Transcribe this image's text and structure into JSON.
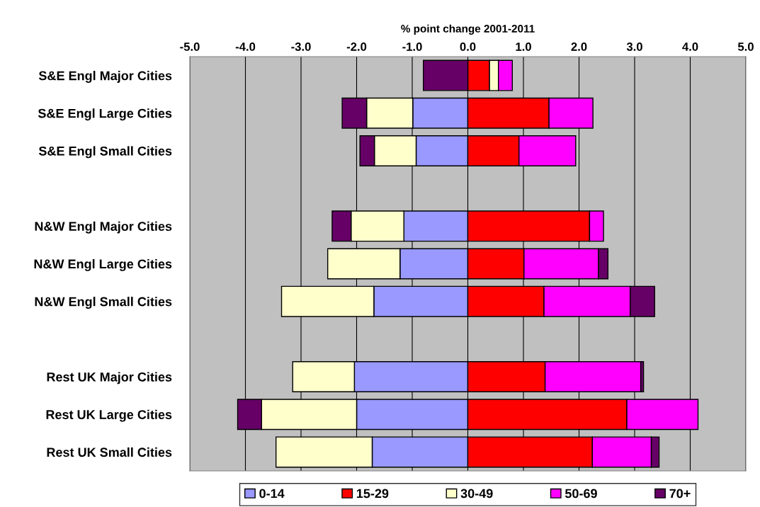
{
  "chart_data": {
    "type": "bar",
    "orientation": "horizontal",
    "stacked": true,
    "xlabel": "% point change 2001-2011",
    "categories": [
      "S&E Engl Major Cities",
      "S&E Engl Large Cities",
      "S&E Engl Small Cities",
      null,
      "N&W Engl Major Cities",
      "N&W Engl Large Cities",
      "N&W Engl Small Cities",
      null,
      "Rest UK Major Cities",
      "Rest UK Large Cities",
      "Rest UK Small Cities"
    ],
    "series": [
      {
        "name": "0-14",
        "color": "#9999ff",
        "values": [
          0,
          -0.99,
          -0.93,
          null,
          -1.15,
          -1.22,
          -1.69,
          null,
          -2.04,
          -2.0,
          -1.72
        ]
      },
      {
        "name": "15-29",
        "color": "#ff0000",
        "values": [
          0.39,
          1.46,
          0.92,
          null,
          2.19,
          1.01,
          1.37,
          null,
          1.39,
          2.86,
          2.24
        ]
      },
      {
        "name": "30-49",
        "color": "#ffffcc",
        "values": [
          0.16,
          -0.83,
          -0.75,
          null,
          -0.95,
          -1.3,
          -1.66,
          null,
          -1.11,
          -1.71,
          -1.73
        ]
      },
      {
        "name": "50-69",
        "color": "#ff00ff",
        "values": [
          0.25,
          0.79,
          1.02,
          null,
          0.25,
          1.34,
          1.55,
          null,
          1.72,
          1.28,
          1.06
        ]
      },
      {
        "name": "70+",
        "color": "#660066",
        "values": [
          -0.8,
          -0.44,
          -0.26,
          null,
          -0.34,
          0.17,
          0.44,
          null,
          0.05,
          -0.43,
          0.14
        ]
      }
    ],
    "xlim": [
      -5,
      5
    ],
    "xticks": [
      {
        "value": -5,
        "label": "-5.0"
      },
      {
        "value": -4,
        "label": "-4.0"
      },
      {
        "value": -3,
        "label": "-3.0"
      },
      {
        "value": -2,
        "label": "-2.0"
      },
      {
        "value": -1,
        "label": "-1.0"
      },
      {
        "value": 0,
        "label": "0.0"
      },
      {
        "value": 1,
        "label": "1.0"
      },
      {
        "value": 2,
        "label": "2.0"
      },
      {
        "value": 3,
        "label": "3.0"
      },
      {
        "value": 4,
        "label": "4.0"
      },
      {
        "value": 5,
        "label": "5.0"
      }
    ],
    "grid": "x",
    "legend": "bottom"
  }
}
